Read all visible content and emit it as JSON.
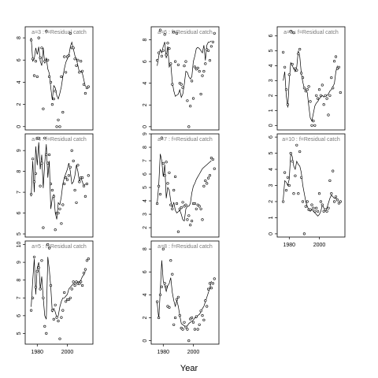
{
  "xlabel": "Year",
  "chart_data": [
    {
      "type": "scatter",
      "title": "a=3  :  f=Residual catch",
      "xlim": [
        1972,
        2017
      ],
      "ylim": [
        -0.3,
        9.0
      ],
      "yticks": [
        0,
        2,
        4,
        6,
        8
      ],
      "xticks": [],
      "x": [
        1976,
        1977,
        1978,
        1979,
        1980,
        1981,
        1982,
        1983,
        1984,
        1985,
        1986,
        1987,
        1988,
        1989,
        1990,
        1991,
        1992,
        1993,
        1994,
        1995,
        1996,
        1997,
        1998,
        1999,
        2000,
        2001,
        2002,
        2003,
        2004,
        2005,
        2006,
        2007,
        2008,
        2009,
        2010,
        2011,
        2012,
        2013,
        2014
      ],
      "points": [
        7.8,
        6.1,
        4.6,
        5.9,
        4.5,
        8.0,
        6.2,
        7.1,
        1.6,
        5.9,
        8.6,
        6.0,
        4.5,
        4.0,
        2.0,
        2.5,
        3.2,
        0.0,
        0.6,
        0.0,
        4.5,
        1.3,
        6.3,
        4.9,
        6.3,
        6.4,
        8.4,
        7.1,
        7.1,
        6.1,
        5.5,
        6.0,
        4.9,
        5.9,
        5.0,
        3.8,
        3.0,
        3.5,
        3.6
      ],
      "fit": [
        8.0,
        5.9,
        6.1,
        7.1,
        6.5,
        7.2,
        5.9,
        5.5,
        7.1,
        5.7,
        6.2,
        5.2,
        4.8,
        3.5,
        2.4,
        3.7,
        3.5,
        2.8,
        2.5,
        3.0,
        3.6,
        4.5,
        5.2,
        5.8,
        6.1,
        6.4,
        7.2,
        7.6,
        7.0,
        6.4,
        6.1,
        5.5,
        4.9,
        5.0,
        4.8,
        4.2,
        3.6
      ]
    },
    {
      "type": "scatter",
      "title": "a=6  :  f=Residual catch",
      "xlim": [
        1972,
        2017
      ],
      "ylim": [
        -0.3,
        9.2
      ],
      "yticks": [
        0,
        2,
        4,
        6,
        8
      ],
      "xticks": [],
      "x": [
        1976,
        1977,
        1978,
        1979,
        1980,
        1981,
        1982,
        1983,
        1984,
        1985,
        1986,
        1987,
        1988,
        1989,
        1990,
        1991,
        1992,
        1993,
        1994,
        1995,
        1996,
        1997,
        1998,
        1999,
        2000,
        2001,
        2002,
        2003,
        2004,
        2005,
        2006,
        2007,
        2008,
        2009,
        2010,
        2011,
        2012,
        2013,
        2014
      ],
      "points": [
        6.1,
        6.8,
        8.9,
        6.5,
        7.0,
        8.5,
        6.6,
        7.7,
        7.2,
        5.8,
        3.9,
        8.7,
        6.0,
        8.6,
        5.7,
        4.0,
        3.9,
        3.6,
        5.6,
        6.0,
        2.4,
        0.0,
        1.9,
        4.2,
        2.6,
        5.5,
        5.3,
        5.4,
        5.1,
        3.0,
        4.7,
        5.1,
        5.8,
        7.1,
        7.0,
        6.1,
        7.4,
        7.8,
        8.6
      ],
      "fit": [
        5.6,
        6.5,
        7.1,
        6.8,
        7.4,
        7.8,
        6.3,
        7.4,
        5.5,
        5.8,
        4.1,
        3.3,
        2.8,
        2.9,
        3.0,
        3.4,
        2.7,
        3.0,
        3.9,
        5.1,
        5.0,
        4.6,
        4.4,
        4.6,
        6.0,
        6.5,
        7.2,
        7.3,
        7.2,
        7.0,
        6.8,
        7.5,
        6.1,
        7.5,
        7.8,
        7.8,
        7.9
      ]
    },
    {
      "type": "scatter",
      "title": "a=9  :  f=Residual catch",
      "xlim": [
        1972,
        2017
      ],
      "ylim": [
        -0.3,
        6.6
      ],
      "yticks": [
        0,
        1,
        2,
        3,
        4,
        5,
        6
      ],
      "xticks": [],
      "x": [
        1976,
        1977,
        1978,
        1979,
        1980,
        1981,
        1982,
        1983,
        1984,
        1985,
        1986,
        1987,
        1988,
        1989,
        1990,
        1991,
        1992,
        1993,
        1994,
        1995,
        1996,
        1997,
        1998,
        1999,
        2000,
        2001,
        2002,
        2003,
        2004,
        2005,
        2006,
        2007,
        2008,
        2009,
        2010,
        2011,
        2012,
        2013,
        2014
      ],
      "points": [
        4.9,
        3.9,
        2.4,
        1.4,
        3.4,
        6.3,
        4.1,
        6.2,
        3.8,
        3.7,
        4.8,
        5.1,
        3.5,
        3.2,
        2.5,
        2.3,
        2.4,
        2.6,
        1.6,
        0.0,
        0.3,
        0.0,
        2.0,
        1.8,
        2.4,
        2.0,
        2.7,
        1.4,
        2.0,
        1.8,
        0.7,
        2.0,
        3.2,
        2.5,
        4.3,
        4.6,
        3.8,
        3.9,
        2.2
      ],
      "fit": [
        3.0,
        3.6,
        2.0,
        1.2,
        3.0,
        4.2,
        4.0,
        3.8,
        3.6,
        3.9,
        5.0,
        4.6,
        3.5,
        2.9,
        2.5,
        2.3,
        2.2,
        1.3,
        0.5,
        0.3,
        0.8,
        1.3,
        1.5,
        1.6,
        1.8,
        1.9,
        2.0,
        1.9,
        2.0,
        2.0,
        2.1,
        2.3,
        2.4,
        2.6,
        2.8,
        3.6,
        4.0
      ]
    },
    {
      "type": "scatter",
      "title": "a=4  :  f=Residual catch",
      "xlim": [
        1972,
        2017
      ],
      "ylim": [
        4.85,
        9.8
      ],
      "yticks": [
        5,
        6,
        7,
        8,
        9
      ],
      "xticks": [],
      "x": [
        1976,
        1977,
        1978,
        1979,
        1980,
        1981,
        1982,
        1983,
        1984,
        1985,
        1986,
        1987,
        1988,
        1989,
        1990,
        1991,
        1992,
        1993,
        1994,
        1995,
        1996,
        1997,
        1998,
        1999,
        2000,
        2001,
        2002,
        2003,
        2004,
        2005,
        2006,
        2007,
        2008,
        2009,
        2010,
        2011,
        2012,
        2013,
        2014
      ],
      "points": [
        6.9,
        8.6,
        7.5,
        7.9,
        9.6,
        9.6,
        7.3,
        8.4,
        5.3,
        9.6,
        8.8,
        8.4,
        8.8,
        7.4,
        7.1,
        6.8,
        5.2,
        6.0,
        6.0,
        6.2,
        5.5,
        6.4,
        7.4,
        7.7,
        7.6,
        7.8,
        8.2,
        9.0,
        8.5,
        7.1,
        6.5,
        8.3,
        7.5,
        7.7,
        7.7,
        7.3,
        6.8,
        7.4,
        7.8
      ],
      "fit": [
        6.8,
        8.5,
        7.0,
        9.2,
        8.3,
        9.4,
        8.1,
        8.8,
        7.2,
        8.4,
        9.3,
        7.7,
        8.5,
        6.2,
        6.7,
        6.9,
        6.0,
        5.7,
        6.5,
        6.4,
        6.8,
        7.4,
        7.7,
        7.9,
        8.1,
        8.4,
        8.0,
        7.4,
        7.5,
        7.8,
        8.3,
        8.0,
        7.5,
        7.7,
        7.5,
        7.3,
        7.4
      ]
    },
    {
      "type": "scatter",
      "title": "a=7  :  f=Residual catch",
      "xlim": [
        1972,
        2017
      ],
      "ylim": [
        1.3,
        9.0
      ],
      "yticks": [
        2,
        3,
        4,
        5,
        6,
        7,
        8,
        9
      ],
      "xticks": [],
      "x": [
        1976,
        1977,
        1978,
        1979,
        1980,
        1981,
        1982,
        1983,
        1984,
        1985,
        1986,
        1987,
        1988,
        1989,
        1990,
        1991,
        1992,
        1993,
        1994,
        1995,
        1996,
        1997,
        1998,
        1999,
        2000,
        2001,
        2002,
        2003,
        2004,
        2005,
        2006,
        2007,
        2008,
        2009,
        2010,
        2011,
        2012,
        2013,
        2014
      ],
      "points": [
        3.8,
        5.1,
        4.5,
        8.7,
        6.8,
        5.9,
        6.9,
        5.3,
        6.1,
        3.7,
        3.4,
        4.8,
        5.8,
        3.8,
        1.7,
        3.4,
        3.5,
        3.9,
        3.6,
        3.7,
        2.6,
        2.9,
        2.2,
        2.5,
        3.8,
        3.8,
        3.4,
        3.7,
        3.6,
        3.4,
        2.6,
        5.1,
        5.5,
        5.3,
        5.7,
        5.9,
        7.2,
        7.1,
        6.4
      ],
      "fit": [
        3.8,
        5.2,
        7.5,
        7.0,
        5.8,
        6.7,
        4.2,
        5.0,
        4.8,
        4.0,
        3.5,
        3.9,
        3.3,
        3.1,
        3.2,
        3.3,
        3.0,
        2.6,
        2.5,
        3.4,
        3.6,
        3.6,
        3.8,
        4.6,
        5.1,
        5.3,
        5.6,
        5.8,
        6.0,
        6.2,
        6.4,
        6.5,
        6.6,
        6.7,
        6.8,
        6.9,
        7.0
      ]
    },
    {
      "type": "scatter",
      "title": "a=10  :  f=Residual catch",
      "xlim": [
        1972,
        2017
      ],
      "ylim": [
        -0.2,
        6.2
      ],
      "yticks": [
        0,
        1,
        2,
        3,
        4,
        5,
        6
      ],
      "xticks": [
        1980,
        2000
      ],
      "x": [
        1976,
        1977,
        1978,
        1979,
        1980,
        1981,
        1982,
        1983,
        1984,
        1985,
        1986,
        1987,
        1988,
        1989,
        1990,
        1991,
        1992,
        1993,
        1994,
        1995,
        1996,
        1997,
        1998,
        1999,
        2000,
        2001,
        2002,
        2003,
        2004,
        2005,
        2006,
        2007,
        2008,
        2009,
        2010,
        2011,
        2012,
        2013,
        2014
      ],
      "points": [
        2.0,
        3.8,
        2.7,
        3.5,
        3.0,
        5.0,
        4.5,
        2.5,
        3.6,
        5.5,
        2.5,
        5.1,
        3.5,
        2.0,
        0.0,
        1.7,
        2.0,
        1.5,
        1.5,
        1.8,
        1.6,
        1.4,
        1.6,
        1.4,
        2.5,
        2.0,
        1.8,
        1.4,
        1.5,
        1.4,
        1.6,
        3.3,
        2.5,
        3.9,
        2.0,
        2.3,
        2.1,
        1.9,
        2.0
      ],
      "fit": [
        2.1,
        3.3,
        3.2,
        3.0,
        3.4,
        5.0,
        4.8,
        4.2,
        4.0,
        4.5,
        4.3,
        4.2,
        3.8,
        3.0,
        2.5,
        2.0,
        1.7,
        1.5,
        1.4,
        1.5,
        1.4,
        1.3,
        1.2,
        1.1,
        1.2,
        1.4,
        1.8,
        1.6,
        1.5,
        1.6,
        1.9,
        2.2,
        2.4,
        2.3,
        2.2,
        2.2,
        2.1
      ]
    },
    {
      "type": "scatter",
      "title": "a=5  :  f=Residual catch",
      "xlim": [
        1972,
        2017
      ],
      "ylim": [
        4.4,
        10.2
      ],
      "yticks": [
        5,
        6,
        7,
        8,
        9,
        10
      ],
      "xticks": [
        1980,
        2000
      ],
      "x": [
        1976,
        1977,
        1978,
        1979,
        1980,
        1981,
        1982,
        1983,
        1984,
        1985,
        1986,
        1987,
        1988,
        1989,
        1990,
        1991,
        1992,
        1993,
        1994,
        1995,
        1996,
        1997,
        1998,
        1999,
        2000,
        2001,
        2002,
        2003,
        2004,
        2005,
        2006,
        2007,
        2008,
        2009,
        2010,
        2011,
        2012,
        2013,
        2014
      ],
      "points": [
        6.3,
        7.0,
        9.3,
        7.6,
        8.5,
        8.7,
        7.5,
        9.1,
        7.0,
        5.4,
        5.0,
        10.0,
        9.8,
        7.7,
        6.3,
        5.8,
        6.6,
        5.9,
        5.7,
        4.7,
        5.9,
        6.3,
        7.3,
        6.8,
        6.9,
        6.9,
        7.0,
        7.5,
        7.9,
        7.7,
        7.9,
        7.8,
        7.8,
        7.9,
        7.7,
        8.4,
        8.6,
        9.1,
        9.2
      ],
      "fit": [
        6.5,
        8.0,
        9.2,
        7.2,
        8.7,
        9.0,
        7.5,
        8.2,
        7.0,
        6.0,
        5.8,
        9.3,
        8.6,
        7.6,
        6.2,
        6.4,
        6.2,
        5.9,
        6.0,
        6.5,
        6.8,
        7.0,
        7.0,
        7.1,
        7.2,
        7.5,
        7.6,
        7.7,
        7.8,
        7.8,
        7.9,
        7.9,
        7.9,
        8.0,
        8.2,
        8.3,
        8.5
      ]
    },
    {
      "type": "scatter",
      "title": "a=8  :  f=Residual catch",
      "xlim": [
        1972,
        2017
      ],
      "ylim": [
        -0.3,
        8.7
      ],
      "yticks": [
        0,
        2,
        4,
        6,
        8
      ],
      "xticks": [
        1980,
        2000
      ],
      "x": [
        1976,
        1977,
        1978,
        1979,
        1980,
        1981,
        1982,
        1983,
        1984,
        1985,
        1986,
        1987,
        1988,
        1989,
        1990,
        1991,
        1992,
        1993,
        1994,
        1995,
        1996,
        1997,
        1998,
        1999,
        2000,
        2001,
        2002,
        2003,
        2004,
        2005,
        2006,
        2007,
        2008,
        2009,
        2010,
        2011,
        2012,
        2013,
        2014
      ],
      "points": [
        3.4,
        2.0,
        4.0,
        4.7,
        8.0,
        5.0,
        4.7,
        3.0,
        2.9,
        7.0,
        5.8,
        1.4,
        2.0,
        3.6,
        3.8,
        2.2,
        1.1,
        1.0,
        1.6,
        1.2,
        1.0,
        0.0,
        1.9,
        2.0,
        1.6,
        1.0,
        2.1,
        1.0,
        1.4,
        2.6,
        2.2,
        1.8,
        3.5,
        3.0,
        4.5,
        5.0,
        4.6,
        5.0,
        5.4
      ],
      "fit": [
        3.3,
        1.9,
        4.3,
        7.0,
        5.2,
        4.8,
        4.3,
        4.8,
        5.0,
        5.5,
        4.2,
        3.5,
        3.0,
        3.5,
        3.0,
        2.2,
        1.5,
        1.4,
        1.3,
        1.2,
        1.3,
        1.5,
        1.6,
        1.7,
        1.8,
        2.0,
        2.0,
        2.2,
        2.3,
        2.5,
        2.8,
        3.0,
        3.4,
        3.8,
        4.2,
        4.6,
        5.2
      ]
    }
  ]
}
